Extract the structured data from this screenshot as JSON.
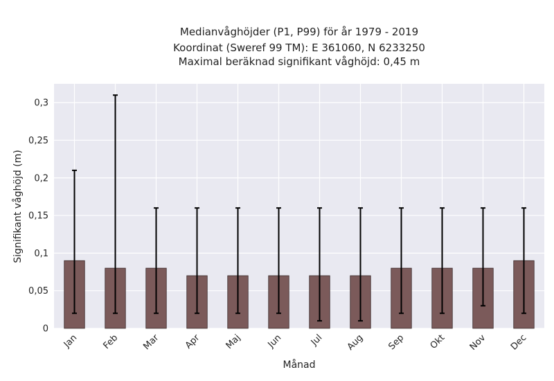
{
  "chart_data": {
    "type": "bar",
    "title_lines": [
      "Medianvåghöjder (P1, P99) för år 1979 - 2019",
      "Koordinat (Sweref 99 TM): E 361060, N 6233250",
      "Maximal beräknad signifikant våghöjd: 0,45 m"
    ],
    "xlabel": "Månad",
    "ylabel": "Signifikant våghöjd (m)",
    "categories": [
      "Jan",
      "Feb",
      "Mar",
      "Apr",
      "Maj",
      "Jun",
      "Jul",
      "Aug",
      "Sep",
      "Okt",
      "Nov",
      "Dec"
    ],
    "series": [
      {
        "values": [
          0.09,
          0.08,
          0.08,
          0.07,
          0.07,
          0.07,
          0.07,
          0.07,
          0.08,
          0.08,
          0.08,
          0.09
        ],
        "p1": [
          0.02,
          0.02,
          0.02,
          0.02,
          0.02,
          0.02,
          0.01,
          0.01,
          0.02,
          0.02,
          0.03,
          0.02
        ],
        "p99": [
          0.21,
          0.31,
          0.16,
          0.16,
          0.16,
          0.16,
          0.16,
          0.16,
          0.16,
          0.16,
          0.16,
          0.16
        ]
      }
    ],
    "yticks": [
      "0",
      "0,05",
      "0,1",
      "0,15",
      "0,2",
      "0,25",
      "0,3"
    ],
    "ylim": [
      0,
      0.325
    ],
    "grid": true,
    "colors": {
      "bar": "#7b5a5a",
      "plot_bg": "#e9e9f1",
      "grid": "#ffffff",
      "errorbar": "#000000"
    }
  }
}
